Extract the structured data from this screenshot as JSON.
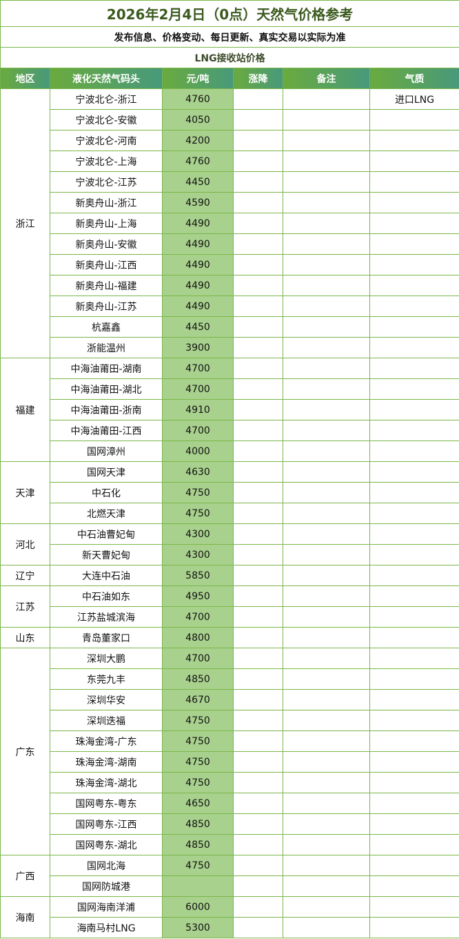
{
  "title": "2026年2月4日（0点）天然气价格参考",
  "subtitle": "发布信息、价格变动、每日更新、真实交易以实际为准",
  "section": "LNG接收站价格",
  "headers": [
    "地区",
    "液化天然气码头",
    "元/吨",
    "涨降",
    "备注",
    "气质"
  ],
  "colors": {
    "border": "#7ab648",
    "header_start": "#6aab3e",
    "header_end": "#47997c",
    "price_bg": "#a9d18e",
    "title": "#3b5a1e"
  },
  "regions": [
    {
      "name": "浙江",
      "rows": [
        {
          "terminal": "宁波北仑-浙江",
          "price": "4760",
          "change": "",
          "note": "",
          "quality": "进口LNG"
        },
        {
          "terminal": "宁波北仑-安徽",
          "price": "4050"
        },
        {
          "terminal": "宁波北仑-河南",
          "price": "4200"
        },
        {
          "terminal": "宁波北仑-上海",
          "price": "4760"
        },
        {
          "terminal": "宁波北仑-江苏",
          "price": "4450"
        },
        {
          "terminal": "新奥舟山-浙江",
          "price": "4590"
        },
        {
          "terminal": "新奥舟山-上海",
          "price": "4490"
        },
        {
          "terminal": "新奥舟山-安徽",
          "price": "4490"
        },
        {
          "terminal": "新奥舟山-江西",
          "price": "4490"
        },
        {
          "terminal": "新奥舟山-福建",
          "price": "4490"
        },
        {
          "terminal": "新奥舟山-江苏",
          "price": "4490"
        },
        {
          "terminal": "杭嘉鑫",
          "price": "4450"
        },
        {
          "terminal": "浙能温州",
          "price": "3900"
        }
      ]
    },
    {
      "name": "福建",
      "rows": [
        {
          "terminal": "中海油莆田-湖南",
          "price": "4700"
        },
        {
          "terminal": "中海油莆田-湖北",
          "price": "4700"
        },
        {
          "terminal": "中海油莆田-浙南",
          "price": "4910"
        },
        {
          "terminal": "中海油莆田-江西",
          "price": "4700"
        },
        {
          "terminal": "国网漳州",
          "price": "4000"
        }
      ]
    },
    {
      "name": "天津",
      "rows": [
        {
          "terminal": "国网天津",
          "price": "4630"
        },
        {
          "terminal": "中石化",
          "price": "4750"
        },
        {
          "terminal": "北燃天津",
          "price": "4750"
        }
      ]
    },
    {
      "name": "河北",
      "rows": [
        {
          "terminal": "中石油曹妃甸",
          "price": "4300"
        },
        {
          "terminal": "新天曹妃甸",
          "price": "4300"
        }
      ]
    },
    {
      "name": "辽宁",
      "rows": [
        {
          "terminal": "大连中石油",
          "price": "5850"
        }
      ]
    },
    {
      "name": "江苏",
      "rows": [
        {
          "terminal": "中石油如东",
          "price": "4950"
        },
        {
          "terminal": "江苏盐城滨海",
          "price": "4700"
        }
      ]
    },
    {
      "name": "山东",
      "rows": [
        {
          "terminal": "青岛董家口",
          "price": "4800"
        }
      ]
    },
    {
      "name": "广东",
      "rows": [
        {
          "terminal": "深圳大鹏",
          "price": "4700"
        },
        {
          "terminal": "东莞九丰",
          "price": "4850"
        },
        {
          "terminal": "深圳华安",
          "price": "4670"
        },
        {
          "terminal": "深圳迭福",
          "price": "4750"
        },
        {
          "terminal": "珠海金湾-广东",
          "price": "4750"
        },
        {
          "terminal": "珠海金湾-湖南",
          "price": "4750"
        },
        {
          "terminal": "珠海金湾-湖北",
          "price": "4750"
        },
        {
          "terminal": "国网粤东-粤东",
          "price": "4650"
        },
        {
          "terminal": "国网粤东-江西",
          "price": "4850"
        },
        {
          "terminal": "国网粤东-湖北",
          "price": "4850"
        }
      ]
    },
    {
      "name": "广西",
      "rows": [
        {
          "terminal": "国网北海",
          "price": "4750"
        },
        {
          "terminal": "国网防城港",
          "price": ""
        }
      ]
    },
    {
      "name": "海南",
      "rows": [
        {
          "terminal": "国网海南洋浦",
          "price": "6000"
        },
        {
          "terminal": "海南马村LNG",
          "price": "5300"
        }
      ]
    }
  ]
}
